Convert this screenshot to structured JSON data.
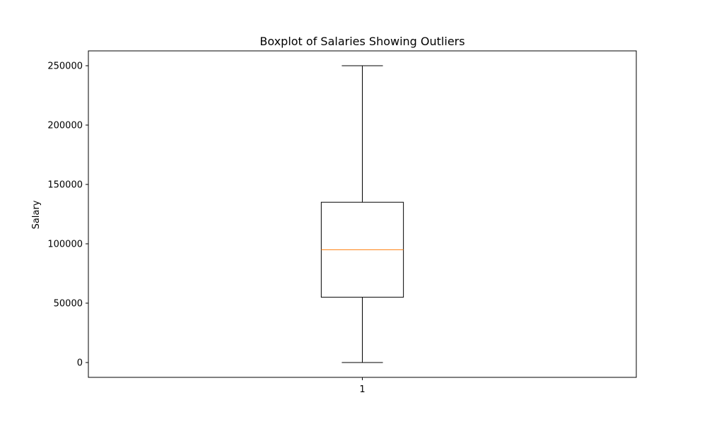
{
  "chart_data": {
    "type": "box",
    "title": "Boxplot of Salaries Showing Outliers",
    "xlabel": "",
    "ylabel": "Salary",
    "categories": [
      "1"
    ],
    "boxes": [
      {
        "category": "1",
        "whisker_low": 0,
        "q1": 55000,
        "median": 95000,
        "q3": 135000,
        "whisker_high": 250000
      }
    ],
    "ylim": [
      -12500,
      262500
    ],
    "yticks": [
      0,
      50000,
      100000,
      150000,
      200000,
      250000
    ],
    "ytick_labels": [
      "0",
      "50000",
      "100000",
      "150000",
      "200000",
      "250000"
    ],
    "grid": false,
    "colors": {
      "box": "#000000",
      "median": "#ff7f0e",
      "background": "#ffffff"
    }
  }
}
